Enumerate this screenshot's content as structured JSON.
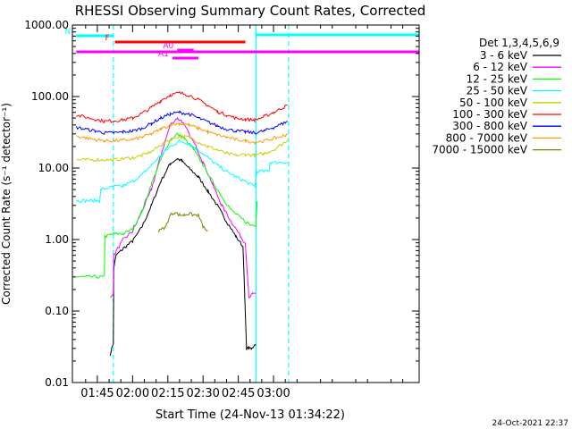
{
  "chart_data": {
    "type": "line",
    "title": "RHESSI Observing Summary Count Rates, Corrected",
    "xlabel": "Start Time (24-Nov-13 01:34:22)",
    "ylabel": "Corrected Count Rate (s⁻¹ detector⁻¹)",
    "timestamp": "24-Oct-2021 22:37",
    "xlim": [
      94.37,
      242.0
    ],
    "ylim": [
      0.01,
      1000
    ],
    "yscale": "log",
    "x_units": "minutes after 00:00 UT",
    "x_ticks": [
      {
        "value": 105,
        "label": "01:45"
      },
      {
        "value": 120,
        "label": "02:00"
      },
      {
        "value": 135,
        "label": "02:15"
      },
      {
        "value": 150,
        "label": "02:30"
      },
      {
        "value": 165,
        "label": "02:45"
      },
      {
        "value": 180,
        "label": "03:00"
      }
    ],
    "y_ticks": [
      {
        "value": 0.01,
        "label": "0.01"
      },
      {
        "value": 0.1,
        "label": "0.10"
      },
      {
        "value": 1,
        "label": "1.00"
      },
      {
        "value": 10,
        "label": "10.00"
      },
      {
        "value": 100,
        "label": "100.00"
      },
      {
        "value": 1000,
        "label": "1000.00"
      }
    ],
    "legend": {
      "title": "Det 1,3,4,5,6,9",
      "placement": "right",
      "entries": [
        {
          "label": "3 - 6 keV",
          "color": "#000000"
        },
        {
          "label": "6 - 12 keV",
          "color": "#ff00ff"
        },
        {
          "label": "12 - 25 keV",
          "color": "#00ff00"
        },
        {
          "label": "25 - 50 keV",
          "color": "#00ffff"
        },
        {
          "label": "50 - 100 keV",
          "color": "#cccc00"
        },
        {
          "label": "100 - 300 keV",
          "color": "#ff0000"
        },
        {
          "label": "300 - 800 keV",
          "color": "#0000ff"
        },
        {
          "label": "800 - 7000 keV",
          "color": "#ff9900"
        },
        {
          "label": "7000 - 15000 keV",
          "color": "#808000"
        }
      ]
    },
    "series": [
      {
        "name": "3 - 6 keV",
        "color": "#000000",
        "x": [
          110.5,
          111.8,
          112,
          113,
          116,
          120,
          124,
          128,
          132,
          136,
          139,
          141,
          144,
          148,
          152,
          156,
          160,
          164,
          167,
          168.5,
          169.5,
          170.5,
          172.5
        ],
        "y": [
          0.025,
          0.035,
          0.4,
          0.6,
          0.75,
          0.95,
          1.5,
          3.0,
          6.5,
          11.5,
          13.5,
          12.5,
          10,
          7.5,
          4.8,
          3.0,
          1.8,
          1.1,
          0.8,
          0.03,
          0.03,
          0.03,
          0.035
        ]
      },
      {
        "name": "6 - 12 keV",
        "color": "#ff00ff",
        "x": [
          110.5,
          111.8,
          112,
          116,
          120,
          124,
          128,
          132,
          136,
          139,
          141,
          144,
          147,
          150,
          154,
          158,
          162,
          166,
          168,
          169.5,
          171,
          172.5
        ],
        "y": [
          0.15,
          0.17,
          0.6,
          1.0,
          1.3,
          2.5,
          5,
          15,
          40,
          50,
          45,
          30,
          20,
          12,
          6,
          3,
          1.8,
          1.1,
          0.9,
          0.15,
          0.17,
          0.18
        ]
      },
      {
        "name": "12 - 25 keV",
        "color": "#00ff00",
        "x": [
          96,
          108,
          108.2,
          112,
          116,
          120,
          124,
          128,
          132,
          136,
          139,
          142,
          146,
          150,
          154,
          158,
          162,
          166,
          170,
          172.5,
          173
        ],
        "y": [
          0.3,
          0.3,
          1.1,
          1.2,
          1.2,
          1.4,
          2.5,
          6,
          13,
          25,
          30,
          26,
          18,
          11,
          6.5,
          4,
          2.6,
          2,
          1.6,
          1.6,
          3.5
        ]
      },
      {
        "name": "25 - 50 keV",
        "color": "#00ffff",
        "x": [
          96,
          106,
          106.5,
          112,
          116,
          120,
          124,
          128,
          132,
          136,
          140,
          144,
          148,
          152,
          156,
          160,
          164,
          168,
          172,
          173,
          178,
          178.5,
          186
        ],
        "y": [
          3.5,
          3.5,
          5,
          5.5,
          5.6,
          6.5,
          8,
          11,
          15,
          20,
          24,
          22,
          18,
          14,
          11,
          9,
          7.5,
          6.5,
          5.5,
          9,
          9,
          12,
          12
        ]
      },
      {
        "name": "50 - 100 keV",
        "color": "#cccc00",
        "x": [
          96,
          112,
          116,
          120,
          124,
          128,
          132,
          136,
          140,
          144,
          148,
          152,
          156,
          160,
          164,
          168,
          172,
          176,
          180,
          184,
          186
        ],
        "y": [
          13,
          13,
          13.5,
          14,
          15,
          17,
          21,
          25,
          28,
          27,
          23,
          20,
          18,
          16,
          15,
          15.5,
          15,
          16,
          18,
          22,
          25
        ]
      },
      {
        "name": "100 - 300 keV",
        "color": "#ff0000",
        "x": [
          96,
          104,
          108,
          112,
          116,
          120,
          124,
          128,
          132,
          136,
          140,
          144,
          148,
          152,
          156,
          160,
          164,
          168,
          172,
          176,
          180,
          184,
          186
        ],
        "y": [
          55,
          48,
          45,
          46,
          47,
          50,
          58,
          70,
          88,
          105,
          112,
          105,
          90,
          75,
          62,
          55,
          50,
          48,
          47,
          52,
          60,
          70,
          75
        ]
      },
      {
        "name": "300 - 800 keV",
        "color": "#0000ff",
        "x": [
          96,
          104,
          108,
          112,
          116,
          120,
          124,
          128,
          132,
          136,
          140,
          144,
          148,
          152,
          156,
          160,
          164,
          168,
          172,
          176,
          180,
          184,
          186
        ],
        "y": [
          37,
          33,
          31,
          31,
          32,
          33,
          36,
          42,
          50,
          57,
          60,
          57,
          50,
          44,
          39,
          35,
          33,
          32,
          31,
          33,
          37,
          42,
          45
        ]
      },
      {
        "name": "800 - 7000 keV",
        "color": "#ff9900",
        "x": [
          96,
          104,
          108,
          112,
          116,
          120,
          124,
          128,
          132,
          136,
          140,
          144,
          148,
          152,
          156,
          160,
          164,
          168,
          172,
          176,
          180,
          184,
          186
        ],
        "y": [
          28,
          25,
          24,
          24,
          24.5,
          25,
          27,
          30,
          35,
          40,
          42,
          40,
          36,
          32,
          29,
          27,
          25,
          24,
          23,
          24,
          26,
          28,
          30
        ]
      },
      {
        "name": "7000 - 15000 keV",
        "color": "#808000",
        "x": [
          131,
          134,
          136,
          138,
          140,
          142,
          144,
          146,
          148,
          150,
          152
        ],
        "y": [
          1.3,
          1.5,
          2.2,
          2.4,
          2.2,
          2.2,
          2.3,
          2.2,
          2.2,
          1.5,
          1.3
        ]
      }
    ],
    "flags": [
      {
        "label": "N",
        "color": "#00ffff",
        "x": [
          96,
          111.8
        ]
      },
      {
        "label": "",
        "color": "#00ffff",
        "x": [
          172.5,
          242
        ]
      },
      {
        "label": "F",
        "color": "#ff0000",
        "x": [
          112.5,
          168
        ]
      },
      {
        "label": "",
        "color": "#ff00ff",
        "x": [
          96,
          242
        ]
      },
      {
        "label": "A0",
        "color": "#ff00ff",
        "x": [
          139,
          146
        ]
      },
      {
        "label": "A1",
        "color": "#ff00ff",
        "x": [
          137,
          148
        ]
      }
    ],
    "vertical_markers": [
      {
        "x": 111.8,
        "color": "#00ffff",
        "style": "dashed"
      },
      {
        "x": 172.5,
        "color": "#00ffff",
        "style": "solid"
      },
      {
        "x": 186.4,
        "color": "#00ffff",
        "style": "dashed"
      }
    ]
  }
}
